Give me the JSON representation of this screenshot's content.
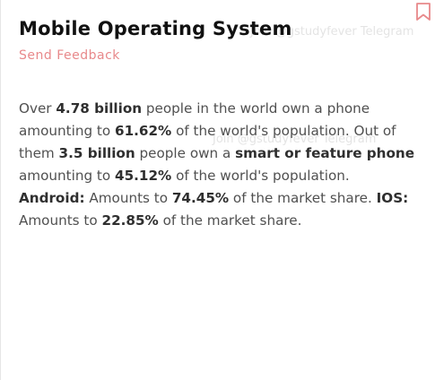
{
  "card": {
    "title": "Mobile Operating System",
    "feedback_label": "Send Feedback",
    "bookmark_icon": "bookmark-icon",
    "accent_color": "#e8898b"
  },
  "watermarks": {
    "top": "Join @gstudyfever Telegram",
    "middle": "Join @gstudyfever Telegram"
  },
  "content": {
    "p1_a": "Over ",
    "p1_b": "4.78 billion",
    "p1_c": " people in the world own a phone amounting to ",
    "p1_d": "61.62%",
    "p1_e": " of the world's population. Out of them ",
    "p1_f": "3.5 billion",
    "p1_g": " people own a ",
    "p1_h": "smart or feature phone",
    "p1_i": " amounting to ",
    "p1_j": "45.12%",
    "p1_k": " of the world's population.",
    "android_label": "Android:",
    "android_text": " Amounts to ",
    "android_value": "74.45%",
    "android_tail": " of the market share. ",
    "ios_label": "IOS:",
    "ios_text": " Amounts to ",
    "ios_value": "22.85%",
    "ios_tail": " of the market share."
  }
}
